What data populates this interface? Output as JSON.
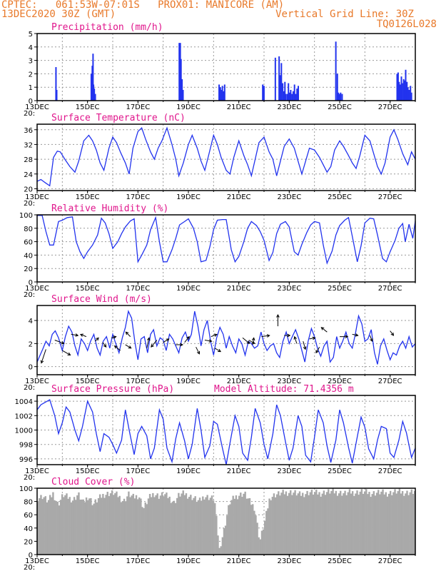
{
  "header": {
    "line1": "CPTEC:   061:53W-07:01S   PROX01: MANICORE (AM)",
    "line2_left": "13DEC2020 30Z (GMT)",
    "line2_right": "Vertical Grid Line: 30Z",
    "line3_right": "TQ0126L028"
  },
  "colors": {
    "header": "#e8792a",
    "title": "#e0168c",
    "series": "#2233ee",
    "cloud": "#a9a9a9",
    "grid": "#999999"
  },
  "chart_data": [
    {
      "type": "bar",
      "title": "Precipitation (mm/h)",
      "ylim": [
        0,
        5
      ],
      "yticks": [
        0,
        1,
        2,
        3,
        4,
        5
      ],
      "xlim": [
        0,
        15
      ],
      "xticks": [
        "13DEC",
        "15DEC",
        "17DEC",
        "19DEC",
        "21DEC",
        "23DEC",
        "25DEC",
        "27DEC"
      ],
      "x_extra": "20:",
      "x": [
        0.72,
        0.75,
        2.12,
        2.16,
        2.19,
        2.21,
        2.24,
        2.28,
        5.61,
        5.65,
        5.68,
        5.72,
        5.76,
        7.19,
        7.24,
        7.28,
        7.32,
        7.36,
        7.41,
        8.92,
        8.97,
        9.42,
        9.57,
        9.62,
        9.66,
        9.71,
        9.76,
        9.8,
        9.84,
        9.9,
        9.94,
        9.99,
        10.03,
        10.08,
        10.13,
        10.18,
        10.23,
        10.28,
        10.33,
        11.82,
        11.88,
        11.92,
        11.97,
        12.01,
        12.07,
        14.25,
        14.29,
        14.33,
        14.37,
        14.42,
        14.46,
        14.51,
        14.55,
        14.59,
        14.64,
        14.68,
        14.73,
        14.78,
        14.82
      ],
      "values": [
        2.5,
        0.8,
        2.0,
        2.6,
        3.5,
        1.2,
        0.9,
        0.5,
        4.3,
        4.3,
        3.1,
        1.6,
        0.8,
        1.2,
        1.0,
        0.8,
        1.1,
        0.7,
        1.2,
        1.2,
        1.1,
        3.2,
        3.3,
        1.9,
        2.8,
        1.3,
        0.7,
        1.4,
        0.5,
        0.5,
        1.3,
        0.6,
        0.8,
        0.5,
        0.7,
        1.2,
        0.5,
        0.9,
        1.1,
        4.4,
        2.0,
        0.6,
        0.5,
        0.6,
        0.5,
        2.0,
        2.1,
        1.4,
        1.2,
        1.8,
        1.3,
        1.6,
        1.5,
        2.3,
        1.4,
        1.0,
        0.8,
        1.1,
        0.6
      ]
    },
    {
      "type": "line",
      "title": "Surface Temperature (nC)",
      "ylim": [
        19.5,
        37.5
      ],
      "yticks": [
        20,
        24,
        28,
        32,
        36
      ],
      "xlim": [
        0,
        15
      ],
      "xticks": [
        "13DEC",
        "15DEC",
        "17DEC",
        "19DEC",
        "21DEC",
        "23DEC",
        "25DEC",
        "27DEC"
      ],
      "x_extra": "20:",
      "x": [
        0,
        0.15,
        0.35,
        0.5,
        0.65,
        0.8,
        0.92,
        1.1,
        1.3,
        1.5,
        1.65,
        1.85,
        2.05,
        2.2,
        2.35,
        2.5,
        2.65,
        2.85,
        3.0,
        3.15,
        3.3,
        3.5,
        3.65,
        3.8,
        4.0,
        4.15,
        4.3,
        4.5,
        4.65,
        4.8,
        4.95,
        5.15,
        5.35,
        5.5,
        5.62,
        5.8,
        6.0,
        6.15,
        6.35,
        6.5,
        6.65,
        6.8,
        7.0,
        7.15,
        7.3,
        7.5,
        7.65,
        7.8,
        8.0,
        8.2,
        8.35,
        8.5,
        8.65,
        8.8,
        9.0,
        9.2,
        9.35,
        9.5,
        9.65,
        9.8,
        10.0,
        10.2,
        10.35,
        10.5,
        10.65,
        10.8,
        11.0,
        11.2,
        11.35,
        11.5,
        11.65,
        11.8,
        12.0,
        12.15,
        12.35,
        12.5,
        12.65,
        12.8,
        13.0,
        13.2,
        13.35,
        13.5,
        13.65,
        13.8,
        14.0,
        14.15,
        14.3,
        14.5,
        14.7,
        14.85,
        15.0
      ],
      "values": [
        22.0,
        22.5,
        21.5,
        20.8,
        28.5,
        30.2,
        30.0,
        28.0,
        26.0,
        24.5,
        27.5,
        33.0,
        34.5,
        33.0,
        30.5,
        27.0,
        25.0,
        31.0,
        34.0,
        32.5,
        30.0,
        27.0,
        24.0,
        31.0,
        35.5,
        36.5,
        33.5,
        30.0,
        28.0,
        31.0,
        33.0,
        36.5,
        32.0,
        28.0,
        23.5,
        27.0,
        32.0,
        34.5,
        31.0,
        27.5,
        25.0,
        29.0,
        34.5,
        32.0,
        28.5,
        25.0,
        24.0,
        28.5,
        33.0,
        29.0,
        26.5,
        23.5,
        28.0,
        32.5,
        34.0,
        30.0,
        28.0,
        23.5,
        27.5,
        31.5,
        33.5,
        31.0,
        27.5,
        24.0,
        27.5,
        31.0,
        30.5,
        28.5,
        26.5,
        24.5,
        26.0,
        30.5,
        33.0,
        31.5,
        29.0,
        27.0,
        25.5,
        29.0,
        34.5,
        33.0,
        29.5,
        26.0,
        24.0,
        27.0,
        34.0,
        36.0,
        33.5,
        29.5,
        26.5,
        30.0,
        28.0
      ]
    },
    {
      "type": "line",
      "title": "Relative Humidity (%)",
      "ylim": [
        0,
        100
      ],
      "yticks": [
        0,
        20,
        40,
        60,
        80,
        100
      ],
      "xlim": [
        0,
        15
      ],
      "xticks": [
        "13DEC",
        "15DEC",
        "17DEC",
        "19DEC",
        "21DEC",
        "23DEC",
        "25DEC",
        "27DEC"
      ],
      "x_extra": "20:",
      "x": [
        0,
        0.2,
        0.35,
        0.5,
        0.65,
        0.85,
        1.0,
        1.2,
        1.4,
        1.55,
        1.7,
        1.85,
        2.0,
        2.2,
        2.4,
        2.55,
        2.7,
        2.85,
        3.0,
        3.2,
        3.35,
        3.5,
        3.7,
        3.85,
        4.0,
        4.15,
        4.35,
        4.5,
        4.7,
        4.85,
        5.0,
        5.15,
        5.35,
        5.5,
        5.65,
        5.85,
        6.0,
        6.2,
        6.35,
        6.5,
        6.7,
        6.85,
        7.0,
        7.15,
        7.35,
        7.5,
        7.7,
        7.85,
        8.0,
        8.2,
        8.35,
        8.5,
        8.7,
        8.85,
        9.0,
        9.2,
        9.35,
        9.5,
        9.65,
        9.85,
        10.0,
        10.2,
        10.35,
        10.5,
        10.7,
        10.85,
        11.0,
        11.2,
        11.35,
        11.5,
        11.7,
        11.85,
        12.0,
        12.2,
        12.35,
        12.5,
        12.7,
        12.85,
        13.0,
        13.2,
        13.35,
        13.5,
        13.7,
        13.85,
        14.0,
        14.2,
        14.35,
        14.5,
        14.6,
        14.75,
        14.9,
        15.0
      ],
      "values": [
        99,
        99,
        75,
        55,
        55,
        90,
        92,
        96,
        97,
        60,
        45,
        35,
        45,
        55,
        70,
        95,
        88,
        72,
        50,
        60,
        72,
        82,
        91,
        94,
        30,
        40,
        55,
        78,
        96,
        60,
        30,
        30,
        48,
        65,
        85,
        90,
        94,
        80,
        60,
        30,
        32,
        52,
        78,
        92,
        93,
        93,
        48,
        30,
        38,
        60,
        80,
        90,
        84,
        75,
        62,
        32,
        44,
        72,
        86,
        90,
        82,
        45,
        40,
        56,
        74,
        85,
        90,
        88,
        55,
        28,
        46,
        70,
        84,
        92,
        96,
        68,
        30,
        54,
        88,
        95,
        94,
        70,
        35,
        30,
        45,
        62,
        80,
        87,
        60,
        86,
        65,
        91
      ]
    },
    {
      "type": "line",
      "title": "Surface Wind (m/s)",
      "ylim": [
        -0.7,
        5.3
      ],
      "yticks": [
        0,
        2,
        4
      ],
      "xlim": [
        0,
        15
      ],
      "xticks": [
        "13DEC",
        "15DEC",
        "17DEC",
        "19DEC",
        "21DEC",
        "23DEC",
        "25DEC",
        "27DEC"
      ],
      "x_extra": "20:",
      "x": [
        0,
        0.1,
        0.22,
        0.35,
        0.48,
        0.6,
        0.72,
        0.85,
        1.0,
        1.12,
        1.25,
        1.38,
        1.5,
        1.62,
        1.75,
        1.88,
        2.0,
        2.12,
        2.25,
        2.38,
        2.5,
        2.62,
        2.75,
        2.88,
        3.0,
        3.12,
        3.25,
        3.38,
        3.5,
        3.62,
        3.75,
        3.88,
        4.0,
        4.12,
        4.25,
        4.38,
        4.5,
        4.62,
        4.75,
        4.88,
        5.0,
        5.12,
        5.25,
        5.38,
        5.5,
        5.62,
        5.75,
        5.88,
        6.0,
        6.12,
        6.25,
        6.38,
        6.5,
        6.62,
        6.75,
        6.88,
        7.0,
        7.12,
        7.25,
        7.38,
        7.5,
        7.62,
        7.75,
        7.88,
        8.0,
        8.12,
        8.25,
        8.38,
        8.5,
        8.62,
        8.75,
        8.88,
        9.0,
        9.12,
        9.25,
        9.38,
        9.5,
        9.62,
        9.75,
        9.88,
        10.0,
        10.12,
        10.25,
        10.38,
        10.5,
        10.62,
        10.75,
        10.88,
        11.0,
        11.12,
        11.25,
        11.38,
        11.5,
        11.62,
        11.75,
        11.88,
        12.0,
        12.12,
        12.25,
        12.38,
        12.5,
        12.62,
        12.75,
        12.88,
        13.0,
        13.12,
        13.25,
        13.38,
        13.5,
        13.62,
        13.75,
        13.88,
        14.0,
        14.12,
        14.25,
        14.38,
        14.5,
        14.62,
        14.75,
        14.88,
        15.0
      ],
      "values": [
        0.4,
        0.9,
        1.5,
        2.2,
        1.8,
        2.8,
        3.1,
        2.5,
        1.4,
        2.6,
        3.5,
        3.0,
        1.8,
        1.0,
        2.4,
        2.0,
        1.4,
        2.2,
        2.8,
        1.6,
        1.0,
        2.2,
        2.6,
        1.6,
        2.8,
        2.0,
        1.2,
        2.5,
        3.4,
        4.8,
        4.2,
        2.1,
        0.6,
        2.4,
        2.6,
        1.2,
        2.8,
        3.2,
        1.8,
        2.5,
        2.3,
        1.4,
        2.8,
        2.4,
        1.8,
        1.2,
        2.5,
        3.0,
        2.2,
        2.8,
        4.8,
        3.5,
        1.8,
        3.2,
        4.0,
        2.2,
        1.0,
        2.5,
        3.4,
        2.8,
        1.6,
        2.6,
        1.8,
        1.2,
        2.4,
        2.0,
        1.0,
        2.2,
        2.0,
        1.6,
        1.8,
        3.0,
        2.0,
        1.4,
        1.8,
        2.0,
        1.2,
        0.8,
        2.2,
        3.0,
        2.0,
        2.6,
        3.2,
        2.4,
        1.4,
        0.4,
        2.2,
        3.3,
        2.6,
        1.6,
        0.9,
        1.8,
        2.2,
        0.4,
        0.8,
        2.6,
        1.6,
        2.2,
        3.0,
        2.0,
        1.6,
        2.8,
        4.4,
        3.7,
        2.2,
        2.4,
        3.2,
        1.2,
        0.2,
        1.8,
        2.4,
        1.4,
        0.6,
        1.2,
        1.0,
        1.8,
        2.2,
        1.6,
        2.6,
        1.7,
        2.0
      ]
    },
    {
      "type": "line",
      "title": "Surface Pressure (hPa)",
      "annotation": "Model Altitude: 71.4356 m",
      "ylim": [
        995.2,
        1004.8
      ],
      "yticks": [
        996,
        998,
        1000,
        1002,
        1004
      ],
      "xlim": [
        0,
        15
      ],
      "xticks": [
        "13DEC",
        "15DEC",
        "17DEC",
        "19DEC",
        "21DEC",
        "23DEC",
        "25DEC",
        "27DEC"
      ],
      "x_extra": "20:",
      "x": [
        0,
        0.15,
        0.3,
        0.5,
        0.7,
        0.85,
        1.0,
        1.15,
        1.3,
        1.5,
        1.65,
        1.8,
        2.0,
        2.2,
        2.35,
        2.5,
        2.65,
        2.85,
        3.0,
        3.15,
        3.35,
        3.5,
        3.65,
        3.85,
        4.0,
        4.15,
        4.35,
        4.5,
        4.65,
        4.85,
        5.0,
        5.15,
        5.35,
        5.5,
        5.65,
        5.85,
        6.0,
        6.15,
        6.35,
        6.5,
        6.65,
        6.85,
        7.0,
        7.15,
        7.35,
        7.5,
        7.65,
        7.85,
        8.0,
        8.15,
        8.35,
        8.5,
        8.65,
        8.85,
        9.0,
        9.15,
        9.35,
        9.5,
        9.65,
        9.85,
        10.0,
        10.15,
        10.35,
        10.5,
        10.65,
        10.85,
        11.0,
        11.15,
        11.35,
        11.5,
        11.65,
        11.85,
        12.0,
        12.15,
        12.35,
        12.5,
        12.65,
        12.85,
        13.0,
        13.15,
        13.35,
        13.5,
        13.65,
        13.85,
        14.0,
        14.15,
        14.35,
        14.5,
        14.65,
        14.85,
        15.0
      ],
      "values": [
        1002.8,
        1003.5,
        1003.8,
        1004.2,
        1002.0,
        999.5,
        1001.0,
        1003.2,
        1002.5,
        1000.0,
        998.5,
        1000.5,
        1004.0,
        1002.5,
        999.5,
        997.0,
        999.5,
        999.0,
        998.0,
        996.8,
        998.6,
        1002.8,
        1000.0,
        996.6,
        999.5,
        1000.5,
        999.2,
        996.0,
        997.5,
        1002.8,
        1001.5,
        997.5,
        995.6,
        998.8,
        1001.0,
        998.5,
        996.0,
        998.0,
        1003.0,
        1000.0,
        996.2,
        997.8,
        1001.2,
        1000.8,
        997.5,
        995.2,
        998.2,
        1002.0,
        1000.5,
        996.8,
        995.8,
        999.0,
        1003.0,
        1001.0,
        998.0,
        996.0,
        999.5,
        1003.5,
        1002.0,
        998.4,
        995.8,
        997.5,
        1002.0,
        1000.5,
        996.5,
        995.6,
        999.0,
        1002.8,
        1001.0,
        997.8,
        995.5,
        998.6,
        1002.8,
        1001.0,
        997.6,
        995.4,
        998.2,
        1001.8,
        1000.4,
        997.4,
        996.0,
        998.6,
        1000.5,
        1000.2,
        996.8,
        996.2,
        998.6,
        1001.2,
        999.6,
        996.2,
        997.5
      ]
    },
    {
      "type": "area",
      "title": "Cloud Cover (%)",
      "ylim": [
        0,
        100
      ],
      "yticks": [
        0,
        20,
        40,
        60,
        80,
        100
      ],
      "xlim": [
        0,
        15
      ],
      "xticks": [
        "13DEC",
        "15DEC",
        "17DEC",
        "19DEC",
        "21DEC",
        "23DEC",
        "25DEC",
        "27DEC"
      ],
      "x_extra": "20:",
      "x": [
        0,
        0.2,
        0.4,
        0.6,
        0.8,
        1.0,
        1.2,
        1.4,
        1.6,
        1.8,
        2.0,
        2.2,
        2.4,
        2.6,
        2.8,
        3.0,
        3.2,
        3.4,
        3.6,
        3.8,
        4.0,
        4.2,
        4.4,
        4.6,
        4.8,
        5.0,
        5.2,
        5.4,
        5.6,
        5.8,
        6.0,
        6.2,
        6.4,
        6.6,
        6.8,
        7.0,
        7.2,
        7.4,
        7.6,
        7.8,
        8.0,
        8.2,
        8.4,
        8.6,
        8.8,
        9.0,
        9.2,
        9.4,
        9.6,
        9.8,
        10.0,
        10.2,
        10.4,
        10.6,
        10.8,
        11.0,
        11.2,
        11.4,
        11.6,
        11.8,
        12.0,
        12.2,
        12.4,
        12.6,
        12.8,
        13.0,
        13.2,
        13.4,
        13.6,
        13.8,
        14.0,
        14.2,
        14.4,
        14.6,
        14.8,
        15.0
      ],
      "values": [
        85,
        88,
        80,
        92,
        75,
        90,
        86,
        82,
        91,
        78,
        88,
        76,
        84,
        90,
        92,
        93,
        88,
        80,
        91,
        86,
        89,
        70,
        85,
        92,
        88,
        91,
        86,
        78,
        90,
        92,
        88,
        85,
        80,
        88,
        86,
        84,
        8,
        40,
        78,
        86,
        90,
        92,
        80,
        70,
        20,
        50,
        86,
        90,
        92,
        93,
        94,
        93,
        90,
        92,
        94,
        93,
        92,
        94,
        95,
        94,
        93,
        92,
        94,
        93,
        95,
        94,
        92,
        93,
        94,
        92,
        93,
        95,
        94,
        93,
        94,
        95
      ]
    }
  ]
}
